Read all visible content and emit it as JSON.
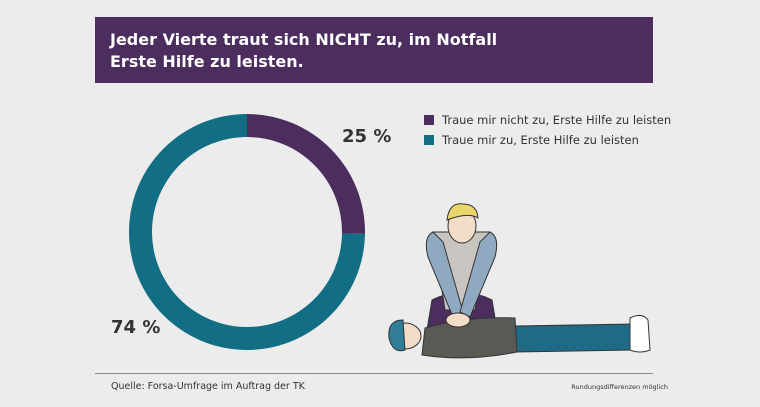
{
  "header": {
    "title_line1": "Jeder Vierte traut sich NICHT zu, im Notfall",
    "title_line2": "Erste Hilfe zu leisten."
  },
  "chart_data": {
    "type": "pie",
    "variant": "donut",
    "series": [
      {
        "name": "Traue mir nicht zu, Erste Hilfe zu leisten",
        "value": 25,
        "label": "25 %",
        "color": "#4b2d5e"
      },
      {
        "name": "Traue mir zu, Erste Hilfe zu leisten",
        "value": 74,
        "label": "74 %",
        "color": "#116e84"
      }
    ],
    "legend": "top-right"
  },
  "footer": {
    "source": "Quelle: Forsa-Umfrage im Auftrag der TK",
    "note": "Rundungsdifferenzen möglich"
  }
}
